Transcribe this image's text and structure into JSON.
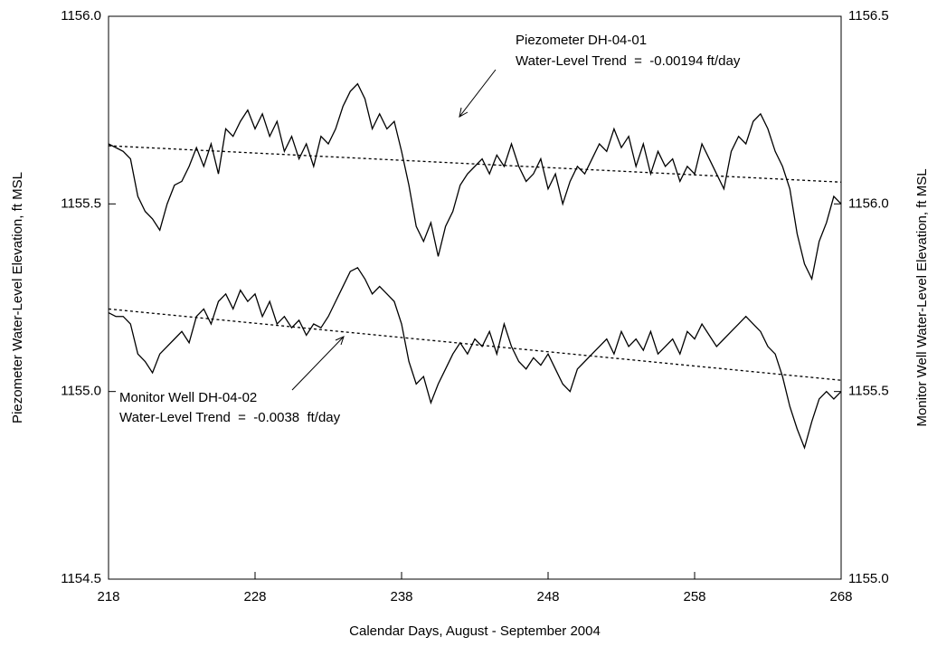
{
  "chart_data": {
    "type": "line",
    "xlabel": "Calendar Days, August - September 2004",
    "ylabel": "Piezometer Water-Level Elevation, ft MSL",
    "y2label": "Monitor Well Water-Level Elevation, ft MSL",
    "xlim": [
      218,
      268
    ],
    "xticks": [
      218,
      228,
      238,
      248,
      258,
      268
    ],
    "ylim": [
      1154.5,
      1156.0
    ],
    "yticks": [
      1154.5,
      {
        "value": 1155.0,
        "label": "1155.0"
      },
      1155.5,
      {
        "value": 1156.0,
        "label": "1156.0"
      }
    ],
    "y2lim": [
      1155.0,
      1156.5
    ],
    "y2ticks": [
      {
        "value": 1155.0,
        "label": "1155.0"
      },
      1155.5,
      {
        "value": 1156.0,
        "label": "1156.0"
      },
      1156.5
    ],
    "grid": false,
    "series": [
      {
        "name": "Piezometer DH-04-01",
        "color": "#000000",
        "style": "solid",
        "x": [
          218,
          218.5,
          219,
          219.5,
          220,
          220.5,
          221,
          221.5,
          222,
          222.5,
          223,
          223.5,
          224,
          224.5,
          225,
          225.5,
          226,
          226.5,
          227,
          227.5,
          228,
          228.5,
          229,
          229.5,
          230,
          230.5,
          231,
          231.5,
          232,
          232.5,
          233,
          233.5,
          234,
          234.5,
          235,
          235.5,
          236,
          236.5,
          237,
          237.5,
          238,
          238.5,
          239,
          239.5,
          240,
          240.5,
          241,
          241.5,
          242,
          242.5,
          243,
          243.5,
          244,
          244.5,
          245,
          245.5,
          246,
          246.5,
          247,
          247.5,
          248,
          248.5,
          249,
          249.5,
          250,
          250.5,
          251,
          251.5,
          252,
          252.5,
          253,
          253.5,
          254,
          254.5,
          255,
          255.5,
          256,
          256.5,
          257,
          257.5,
          258,
          258.5,
          259,
          259.5,
          260,
          260.5,
          261,
          261.5,
          262,
          262.5,
          263,
          263.5,
          264,
          264.5,
          265,
          265.5,
          266,
          266.5,
          267,
          267.5,
          268
        ],
        "values": [
          1155.66,
          1155.65,
          1155.64,
          1155.62,
          1155.52,
          1155.48,
          1155.46,
          1155.43,
          1155.5,
          1155.55,
          1155.56,
          1155.6,
          1155.65,
          1155.6,
          1155.66,
          1155.58,
          1155.7,
          1155.68,
          1155.72,
          1155.75,
          1155.7,
          1155.74,
          1155.68,
          1155.72,
          1155.64,
          1155.68,
          1155.62,
          1155.66,
          1155.6,
          1155.68,
          1155.66,
          1155.7,
          1155.76,
          1155.8,
          1155.82,
          1155.78,
          1155.7,
          1155.74,
          1155.7,
          1155.72,
          1155.64,
          1155.55,
          1155.44,
          1155.4,
          1155.45,
          1155.36,
          1155.44,
          1155.48,
          1155.55,
          1155.58,
          1155.6,
          1155.62,
          1155.58,
          1155.63,
          1155.6,
          1155.66,
          1155.6,
          1155.56,
          1155.58,
          1155.62,
          1155.54,
          1155.58,
          1155.5,
          1155.56,
          1155.6,
          1155.58,
          1155.62,
          1155.66,
          1155.64,
          1155.7,
          1155.65,
          1155.68,
          1155.6,
          1155.66,
          1155.58,
          1155.64,
          1155.6,
          1155.62,
          1155.56,
          1155.6,
          1155.58,
          1155.66,
          1155.62,
          1155.58,
          1155.54,
          1155.64,
          1155.68,
          1155.66,
          1155.72,
          1155.74,
          1155.7,
          1155.64,
          1155.6,
          1155.54,
          1155.42,
          1155.34,
          1155.3,
          1155.4,
          1155.45,
          1155.52,
          1155.5
        ]
      },
      {
        "name": "Monitor Well DH-04-02",
        "color": "#000000",
        "style": "solid",
        "axis": "y2",
        "x": [
          218,
          218.5,
          219,
          219.5,
          220,
          220.5,
          221,
          221.5,
          222,
          222.5,
          223,
          223.5,
          224,
          224.5,
          225,
          225.5,
          226,
          226.5,
          227,
          227.5,
          228,
          228.5,
          229,
          229.5,
          230,
          230.5,
          231,
          231.5,
          232,
          232.5,
          233,
          233.5,
          234,
          234.5,
          235,
          235.5,
          236,
          236.5,
          237,
          237.5,
          238,
          238.5,
          239,
          239.5,
          240,
          240.5,
          241,
          241.5,
          242,
          242.5,
          243,
          243.5,
          244,
          244.5,
          245,
          245.5,
          246,
          246.5,
          247,
          247.5,
          248,
          248.5,
          249,
          249.5,
          250,
          250.5,
          251,
          251.5,
          252,
          252.5,
          253,
          253.5,
          254,
          254.5,
          255,
          255.5,
          256,
          256.5,
          257,
          257.5,
          258,
          258.5,
          259,
          259.5,
          260,
          260.5,
          261,
          261.5,
          262,
          262.5,
          263,
          263.5,
          264,
          264.5,
          265,
          265.5,
          266,
          266.5,
          267,
          267.5,
          268
        ],
        "values": [
          1155.71,
          1155.7,
          1155.7,
          1155.68,
          1155.6,
          1155.58,
          1155.55,
          1155.6,
          1155.62,
          1155.64,
          1155.66,
          1155.63,
          1155.7,
          1155.72,
          1155.68,
          1155.74,
          1155.76,
          1155.72,
          1155.77,
          1155.74,
          1155.76,
          1155.7,
          1155.74,
          1155.68,
          1155.7,
          1155.67,
          1155.69,
          1155.65,
          1155.68,
          1155.67,
          1155.7,
          1155.74,
          1155.78,
          1155.82,
          1155.83,
          1155.8,
          1155.76,
          1155.78,
          1155.76,
          1155.74,
          1155.68,
          1155.58,
          1155.52,
          1155.54,
          1155.47,
          1155.52,
          1155.56,
          1155.6,
          1155.63,
          1155.6,
          1155.64,
          1155.62,
          1155.66,
          1155.6,
          1155.68,
          1155.62,
          1155.58,
          1155.56,
          1155.59,
          1155.57,
          1155.6,
          1155.56,
          1155.52,
          1155.5,
          1155.56,
          1155.58,
          1155.6,
          1155.62,
          1155.64,
          1155.6,
          1155.66,
          1155.62,
          1155.64,
          1155.61,
          1155.66,
          1155.6,
          1155.62,
          1155.64,
          1155.6,
          1155.66,
          1155.64,
          1155.68,
          1155.65,
          1155.62,
          1155.64,
          1155.66,
          1155.68,
          1155.7,
          1155.68,
          1155.66,
          1155.62,
          1155.6,
          1155.54,
          1155.46,
          1155.4,
          1155.35,
          1155.42,
          1155.48,
          1155.5,
          1155.48,
          1155.5
        ]
      },
      {
        "color": "#000000",
        "style": "dotted",
        "x": [
          218,
          268
        ],
        "values": [
          1155.655,
          1155.558
        ]
      },
      {
        "color": "#000000",
        "style": "dotted",
        "axis": "y2",
        "x": [
          218,
          268
        ],
        "values": [
          1155.72,
          1155.53
        ]
      }
    ],
    "annotations": [
      "Water-Level Trend  =  -0.00194 ft/day",
      "Water-Level Trend  =  -0.0038  ft/day"
    ]
  }
}
